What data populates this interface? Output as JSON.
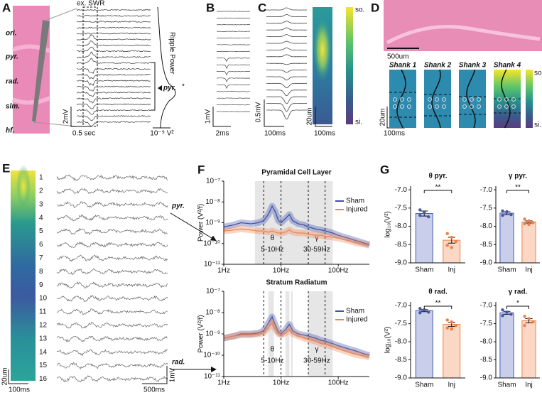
{
  "panels": {
    "A": {
      "letter": "A",
      "layers": [
        "ori.",
        "pyr.",
        "rad.",
        "slm.",
        "hf."
      ],
      "event_label": "ex. SWR",
      "power_label": "Ripple Power",
      "peak_label": "pyr.",
      "peak_marker": "*",
      "scale_v": "2mV",
      "scale_t": "0.5 sec",
      "scale_power": "10⁻⁹ V²"
    },
    "B": {
      "letter": "B",
      "scale_v": "1mV",
      "scale_t": "2ms"
    },
    "C": {
      "letter": "C",
      "scale_v": "0.5mV",
      "scale_t": "100ms",
      "heat_scale_y": "20um",
      "heat_scale_t": "100ms",
      "colorbar_top": "so.",
      "colorbar_bottom": "si."
    },
    "D": {
      "letter": "D",
      "scale_bar": "500um",
      "shanks": [
        "Shank 1",
        "Shank 2",
        "Shank 3",
        "Shank 4"
      ],
      "scale_y": "20um",
      "scale_t": "100ms",
      "colorbar_top": "so.",
      "colorbar_bottom": "si."
    },
    "E": {
      "letter": "E",
      "channels": [
        1,
        2,
        3,
        4,
        5,
        6,
        7,
        8,
        9,
        10,
        11,
        12,
        13,
        14,
        15,
        16
      ],
      "pointer_pyr": "pyr.",
      "pointer_rad": "rad.",
      "scale_y": "20um",
      "scale_t_heat": "100ms",
      "scale_t": "500ms",
      "scale_v": "1mV"
    },
    "F": {
      "letter": "F",
      "type": "line",
      "log_scale": true,
      "plots": [
        {
          "title": "Pyramidal Cell Layer",
          "y_label": "Power (V²/f)",
          "xlim": [
            1,
            350
          ],
          "xticks": [
            {
              "value": 1,
              "label": "1Hz"
            },
            {
              "value": 10,
              "label": "10Hz"
            },
            {
              "value": 100,
              "label": "100Hz"
            }
          ],
          "ylim": [
            1e-11,
            1e-07
          ],
          "yticks": [
            {
              "value": 1e-07,
              "label": "10⁻⁷"
            },
            {
              "value": 1e-08,
              "label": "10⁻⁸"
            },
            {
              "value": 1e-09,
              "label": "10⁻⁹"
            },
            {
              "value": 1e-10,
              "label": "10⁻¹⁰"
            },
            {
              "value": 1e-11,
              "label": "10⁻¹¹"
            }
          ],
          "shaded_ranges": [
            [
              3.5,
              80
            ]
          ],
          "bands": [
            {
              "symbol": "θ",
              "range_label": "5-10Hz",
              "lo": 5,
              "hi": 10
            },
            {
              "symbol": "γ",
              "range_label": "30-59Hz",
              "lo": 30,
              "hi": 59
            }
          ],
          "x": [
            1,
            1.5,
            2,
            3,
            4,
            5,
            6,
            7,
            8,
            9,
            10,
            12,
            14,
            16,
            20,
            25,
            30,
            40,
            50,
            60,
            80,
            100,
            150,
            200,
            300,
            350
          ],
          "series": [
            {
              "name": "Sham",
              "color": "#3f51a8",
              "values": [
                6.3e-10,
                7.9e-10,
                1e-09,
                8.9e-10,
                1e-09,
                1.26e-09,
                2.5e-09,
                6.3e-09,
                3.2e-09,
                1.26e-09,
                1e-09,
                1.6e-09,
                2.5e-09,
                1.26e-09,
                8.9e-10,
                7.9e-10,
                6.3e-10,
                5e-10,
                4.5e-10,
                4e-10,
                3.2e-10,
                2.5e-10,
                1.8e-10,
                1.4e-10,
                1e-10,
                8.9e-11
              ]
            },
            {
              "name": "Injured",
              "color": "#ef8450",
              "values": [
                4e-10,
                4.5e-10,
                5e-10,
                4.5e-10,
                4e-10,
                4e-10,
                3.5e-10,
                4e-10,
                3.5e-10,
                3.2e-10,
                3.2e-10,
                3.5e-10,
                4.5e-10,
                3.5e-10,
                3.2e-10,
                3.2e-10,
                2.8e-10,
                2.5e-10,
                2.5e-10,
                2.2e-10,
                2e-10,
                1.8e-10,
                1.4e-10,
                1.1e-10,
                8.9e-11,
                7.9e-11
              ]
            }
          ]
        },
        {
          "title": "Stratum Radiatum",
          "y_label": "Power (V²/f)",
          "xlim": [
            1,
            350
          ],
          "xticks": [
            {
              "value": 1,
              "label": "1Hz"
            },
            {
              "value": 10,
              "label": "10Hz"
            },
            {
              "value": 100,
              "label": "100Hz"
            }
          ],
          "ylim": [
            1e-11,
            1e-07
          ],
          "yticks": [
            {
              "value": 1e-07,
              "label": "10⁻⁷"
            },
            {
              "value": 1e-08,
              "label": "10⁻⁸"
            },
            {
              "value": 1e-09,
              "label": "10⁻⁹"
            },
            {
              "value": 1e-10,
              "label": "10⁻¹⁰"
            },
            {
              "value": 1e-11,
              "label": "10⁻¹¹"
            }
          ],
          "shaded_ranges": [
            [
              6,
              7.5
            ],
            [
              12,
              14
            ],
            [
              15,
              16
            ],
            [
              30,
              80
            ]
          ],
          "bands": [
            {
              "symbol": "θ",
              "range_label": "5-10Hz",
              "lo": 5,
              "hi": 10
            },
            {
              "symbol": "γ",
              "range_label": "30-59Hz",
              "lo": 30,
              "hi": 59
            }
          ],
          "x": [
            1,
            1.5,
            2,
            3,
            4,
            5,
            6,
            7,
            8,
            9,
            10,
            12,
            14,
            16,
            20,
            25,
            30,
            40,
            50,
            60,
            80,
            100,
            150,
            200,
            300,
            350
          ],
          "series": [
            {
              "name": "Sham",
              "color": "#3f51a8",
              "values": [
                6.3e-10,
                7.9e-10,
                1e-09,
                1e-09,
                1.1e-09,
                1.4e-09,
                3.2e-09,
                6.3e-09,
                2.5e-09,
                1.26e-09,
                1e-09,
                1.6e-09,
                2.8e-09,
                1.4e-09,
                1e-09,
                8.9e-10,
                7.9e-10,
                6.3e-10,
                5e-10,
                4.5e-10,
                3.5e-10,
                2.8e-10,
                2e-10,
                1.6e-10,
                1.1e-10,
                1e-10
              ]
            },
            {
              "name": "Injured",
              "color": "#ef8450",
              "values": [
                6.3e-10,
                7.9e-10,
                8.9e-10,
                8.9e-10,
                1e-09,
                1.1e-09,
                2e-09,
                3.2e-09,
                1.6e-09,
                1e-09,
                8.9e-10,
                1.1e-09,
                1.6e-09,
                1e-09,
                7.9e-10,
                6.3e-10,
                5.6e-10,
                4.5e-10,
                3.5e-10,
                3.2e-10,
                2.5e-10,
                2e-10,
                1.4e-10,
                1.1e-10,
                8.9e-11,
                7.9e-11
              ]
            }
          ]
        }
      ]
    },
    "G": {
      "letter": "G",
      "type": "bar",
      "plots": [
        {
          "title": "θ pyr.",
          "y_label": "log₁₀(V²)",
          "ylim": [
            -9.0,
            -6.9
          ],
          "yticks": [
            {
              "value": -7,
              "label": "-7.0"
            },
            {
              "value": -7.5,
              "label": "-7.5"
            },
            {
              "value": -8,
              "label": "-8.0"
            },
            {
              "value": -8.5,
              "label": "-8.5"
            },
            {
              "value": -9,
              "label": "-9.0"
            }
          ],
          "categories": [
            "Sham",
            "Inj"
          ],
          "colors": [
            "#c9cfea",
            "#fbd8c6"
          ],
          "point_colors": [
            "#4457ad",
            "#ee7f4a"
          ],
          "values": [
            -7.65,
            -8.38
          ],
          "errors": [
            0.07,
            0.08
          ],
          "points": [
            [
              -7.55,
              -7.62,
              -7.74,
              -7.7
            ],
            [
              -8.2,
              -8.3,
              -8.42,
              -8.52,
              -8.58
            ]
          ],
          "significance": "**"
        },
        {
          "title": "γ pyr.",
          "ylim": [
            -9.0,
            -6.9
          ],
          "yticks": [
            {
              "value": -7,
              "label": "-7.0"
            },
            {
              "value": -7.5,
              "label": "-7.5"
            },
            {
              "value": -8,
              "label": "-8.0"
            },
            {
              "value": -8.5,
              "label": "-8.5"
            },
            {
              "value": -9,
              "label": "-9.0"
            }
          ],
          "categories": [
            "Sham",
            "Inj"
          ],
          "colors": [
            "#c9cfea",
            "#fbd8c6"
          ],
          "point_colors": [
            "#4457ad",
            "#ee7f4a"
          ],
          "values": [
            -7.64,
            -7.88
          ],
          "errors": [
            0.04,
            0.03
          ],
          "points": [
            [
              -7.58,
              -7.6,
              -7.68,
              -7.7
            ],
            [
              -7.8,
              -7.85,
              -7.9,
              -7.93,
              -7.95
            ]
          ],
          "significance": "**"
        },
        {
          "title": "θ rad.",
          "y_label": "log₁₀(V²)",
          "ylim": [
            -9.0,
            -6.9
          ],
          "yticks": [
            {
              "value": -7,
              "label": "-7.0"
            },
            {
              "value": -7.5,
              "label": "-7.5"
            },
            {
              "value": -8,
              "label": "-8.0"
            },
            {
              "value": -8.5,
              "label": "-8.5"
            },
            {
              "value": -9,
              "label": "-9.0"
            }
          ],
          "categories": [
            "Sham",
            "Inj"
          ],
          "colors": [
            "#c9cfea",
            "#fbd8c6"
          ],
          "point_colors": [
            "#4457ad",
            "#ee7f4a"
          ],
          "values": [
            -7.14,
            -7.52
          ],
          "errors": [
            0.03,
            0.06
          ],
          "points": [
            [
              -7.08,
              -7.12,
              -7.18,
              -7.2
            ],
            [
              -7.4,
              -7.45,
              -7.55,
              -7.62,
              -7.65
            ]
          ],
          "significance": "**"
        },
        {
          "title": "γ rad.",
          "ylim": [
            -9.0,
            -6.9
          ],
          "yticks": [
            {
              "value": -7,
              "label": "-7.0"
            },
            {
              "value": -7.5,
              "label": "-7.5"
            },
            {
              "value": -8,
              "label": "-8.0"
            },
            {
              "value": -8.5,
              "label": "-8.5"
            },
            {
              "value": -9,
              "label": "-9.0"
            }
          ],
          "categories": [
            "Sham",
            "Inj"
          ],
          "colors": [
            "#c9cfea",
            "#fbd8c6"
          ],
          "point_colors": [
            "#4457ad",
            "#ee7f4a"
          ],
          "values": [
            -7.2,
            -7.42
          ],
          "errors": [
            0.04,
            0.06
          ],
          "points": [
            [
              -7.12,
              -7.18,
              -7.24,
              -7.28
            ],
            [
              -7.3,
              -7.36,
              -7.45,
              -7.55
            ]
          ],
          "significance": "*"
        }
      ]
    }
  }
}
